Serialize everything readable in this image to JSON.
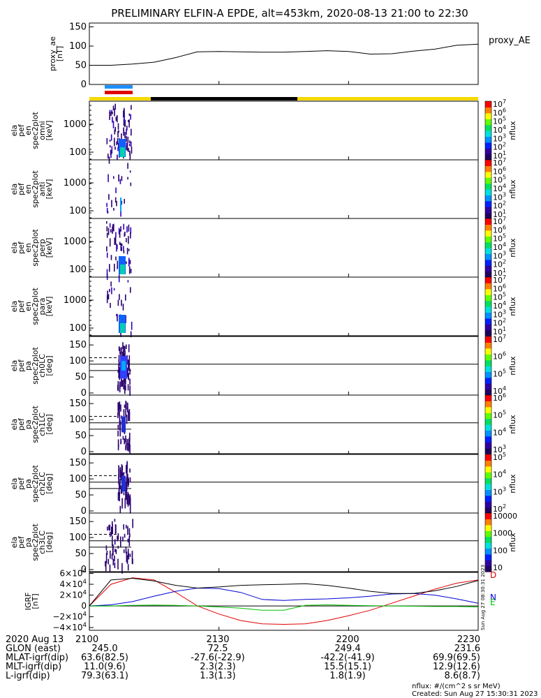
{
  "title": "PRELIMINARY ELFIN-A EPDE, alt=453km, 2020-08-13 21:00 to 22:30",
  "proxy_ae": {
    "ylabel_lines": [
      "proxy_ae",
      "[nT]"
    ],
    "series_label": "proxy_AE",
    "ytick_labels": [
      "150",
      "100",
      "50",
      "0"
    ]
  },
  "energy_panels": [
    {
      "ylabel_lines": [
        "ela",
        "pef",
        "en",
        "spec2plot",
        "omni",
        "[keV]"
      ],
      "ytick_labels": [
        "1000",
        "100"
      ],
      "colorbar_labels": [
        "10^7",
        "10^6",
        "10^5",
        "10^4",
        "10^3",
        "10^2",
        "10^1"
      ],
      "colorbar_unit": "nflux"
    },
    {
      "ylabel_lines": [
        "ela",
        "pef",
        "en",
        "spec2plot",
        "anti",
        "[keV]"
      ],
      "ytick_labels": [
        "1000",
        "100"
      ],
      "colorbar_labels": [
        "10^7",
        "10^6",
        "10^5",
        "10^4",
        "10^3",
        "10^2",
        "10^1"
      ],
      "colorbar_unit": "nflux"
    },
    {
      "ylabel_lines": [
        "ela",
        "pef",
        "en",
        "spec2plot",
        "perp",
        "[keV]"
      ],
      "ytick_labels": [
        "1000",
        "100"
      ],
      "colorbar_labels": [
        "10^7",
        "10^6",
        "10^5",
        "10^4",
        "10^3",
        "10^2",
        "10^1"
      ],
      "colorbar_unit": "nflux"
    },
    {
      "ylabel_lines": [
        "ela",
        "pef",
        "en",
        "spec2plot",
        "para",
        "[keV]"
      ],
      "ytick_labels": [
        "1000",
        "100"
      ],
      "colorbar_labels": [
        "10^7",
        "10^6",
        "10^5",
        "10^4",
        "10^3",
        "10^2",
        "10^1"
      ],
      "colorbar_unit": "nflux"
    }
  ],
  "pa_panels": [
    {
      "ylabel_lines": [
        "ela",
        "pef",
        "pa",
        "spec2plot",
        "ch0LC",
        "[deg]"
      ],
      "ytick_labels": [
        "150",
        "100",
        "50",
        "0"
      ],
      "colorbar_labels": [
        "10^7",
        "10^6",
        "10^5",
        "10^4"
      ],
      "colorbar_unit": "nflux"
    },
    {
      "ylabel_lines": [
        "ela",
        "pef",
        "pa",
        "spec2plot",
        "ch1LC",
        "[deg]"
      ],
      "ytick_labels": [
        "150",
        "100",
        "50",
        "0"
      ],
      "colorbar_labels": [
        "10^6",
        "10^5",
        "10^4",
        "10^3"
      ],
      "colorbar_unit": "nflux"
    },
    {
      "ylabel_lines": [
        "ela",
        "pef",
        "pa",
        "spec2plot",
        "ch2LC",
        "[deg]"
      ],
      "ytick_labels": [
        "150",
        "100",
        "50",
        "0"
      ],
      "colorbar_labels": [
        "10^5",
        "10^4",
        "10^3",
        "10^2"
      ],
      "colorbar_unit": "nflux"
    },
    {
      "ylabel_lines": [
        "ela",
        "pef",
        "pa",
        "spec2plot",
        "ch3LC",
        "[deg]"
      ],
      "ytick_labels": [
        "150",
        "100",
        "50",
        "0"
      ],
      "colorbar_labels": [
        "10000",
        "1000",
        "100",
        "10"
      ],
      "colorbar_unit": "nflux"
    }
  ],
  "igrf": {
    "ylabel_lines": [
      "IGRF",
      "[nT]"
    ],
    "ytick_labels": [
      "6×10^4",
      "4×10^4",
      "2×10^4",
      "0",
      "−2×10^4",
      "−4×10^4"
    ],
    "legend": [
      "D",
      "N",
      "E"
    ],
    "legend_colors": [
      "#e00000",
      "#0000e0",
      "#00c000"
    ],
    "side_text": "Sun Aug 27 08:30:31 2023"
  },
  "orbit_table": {
    "row_labels": [
      "2020 Aug 13",
      "GLON (east)",
      "MLAT-igrf(dip)",
      "MLT-igrf(dip)",
      "L-igrf(dip)"
    ],
    "columns": [
      [
        "2100",
        "245.0",
        "63.6(82.5)",
        "11.0(9.6)",
        "79.3(63.1)"
      ],
      [
        "2130",
        "72.5",
        "-27.6(-22.9)",
        "2.3(2.3)",
        "1.3(1.3)"
      ],
      [
        "2200",
        "249.4",
        "-42.2(-41.9)",
        "15.5(15.1)",
        "1.8(1.9)"
      ],
      [
        "2230",
        "231.6",
        "69.9(69.5)",
        "12.9(12.6)",
        "8.6(8.7)"
      ]
    ]
  },
  "footer": {
    "units": "nflux: #/(cm^2 s sr MeV)",
    "created": "Created: Sun Aug 27 15:30:31 2023"
  },
  "colors": {
    "sci_zone_blue": "#1e90ff",
    "sci_zone_red": "#e00000",
    "status_yellow": "#f5d800",
    "status_black": "#000000"
  },
  "chart_data": [
    {
      "type": "line",
      "x": [
        "21:00",
        "21:05",
        "21:10",
        "21:15",
        "21:20",
        "21:25",
        "21:30",
        "21:35",
        "21:40",
        "21:45",
        "21:50",
        "21:55",
        "22:00",
        "22:05",
        "22:10",
        "22:15",
        "22:20",
        "22:25",
        "22:30"
      ],
      "series": [
        {
          "name": "proxy_AE",
          "values": [
            50,
            50,
            53,
            58,
            70,
            85,
            86,
            85,
            84,
            84,
            86,
            88,
            86,
            79,
            80,
            87,
            92,
            102,
            105
          ]
        }
      ],
      "ylim": [
        0,
        160
      ]
    },
    {
      "type": "line",
      "x": [
        "21:00",
        "21:05",
        "21:10",
        "21:15",
        "21:20",
        "21:25",
        "21:30",
        "21:35",
        "21:40",
        "21:45",
        "21:50",
        "21:55",
        "22:00",
        "22:05",
        "22:10",
        "22:15",
        "22:20",
        "22:25",
        "22:30"
      ],
      "series": [
        {
          "name": "D",
          "values": [
            0,
            40000,
            52000,
            48000,
            25000,
            0,
            -15000,
            -27000,
            -33000,
            -34000,
            -33000,
            -27000,
            -18000,
            -8000,
            5000,
            18000,
            31000,
            42000,
            48000
          ]
        },
        {
          "name": "N",
          "values": [
            0,
            2000,
            8000,
            18000,
            27000,
            33000,
            32000,
            25000,
            12000,
            10000,
            12000,
            13000,
            15000,
            18000,
            22000,
            23000,
            20000,
            13000,
            5000
          ]
        },
        {
          "name": "E",
          "values": [
            0,
            0,
            1000,
            1500,
            1000,
            0,
            -2000,
            -4000,
            -8000,
            -8000,
            1000,
            2000,
            1000,
            500,
            0,
            -500,
            -1000,
            -1000,
            -2000
          ]
        },
        {
          "name": "",
          "values": [
            0,
            48000,
            51000,
            46000,
            38000,
            33000,
            35000,
            38000,
            39000,
            40000,
            41000,
            38000,
            33000,
            27000,
            23000,
            23000,
            28000,
            36000,
            47000
          ]
        }
      ],
      "ylim": [
        -45000,
        62000
      ]
    }
  ]
}
